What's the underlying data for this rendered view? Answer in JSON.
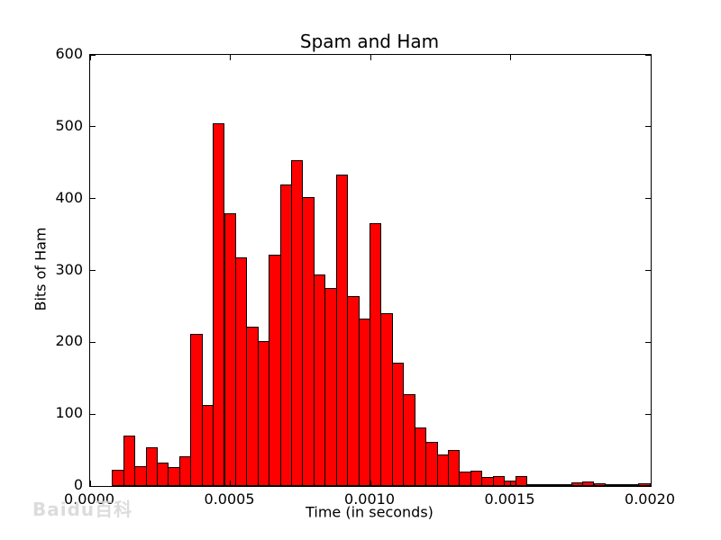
{
  "watermark": "Baidu百科",
  "colors": {
    "bar_fill": "#ff0000",
    "bar_edge": "#000000",
    "axis": "#000000",
    "text": "#000000",
    "background": "#ffffff",
    "watermark": "#d7d7d7"
  },
  "chart_data": {
    "type": "bar",
    "title": "Spam and Ham",
    "xlabel": "Time (in seconds)",
    "ylabel": "Bits of Ham",
    "xlim": [
      0.0,
      0.002
    ],
    "ylim": [
      0,
      600
    ],
    "grid": false,
    "legend": null,
    "x_tick_labels": [
      "0.0000",
      "0.0005",
      "0.0010",
      "0.0015",
      "0.0020"
    ],
    "x_tick_values": [
      0.0,
      0.0005,
      0.001,
      0.0015,
      0.002
    ],
    "y_tick_labels": [
      "0",
      "100",
      "200",
      "300",
      "400",
      "500",
      "600"
    ],
    "y_tick_values": [
      0,
      100,
      200,
      300,
      400,
      500,
      600
    ],
    "bin_start": 7.8e-05,
    "bin_width": 3.995e-05,
    "values": [
      22,
      70,
      27,
      54,
      32,
      26,
      41,
      212,
      113,
      505,
      380,
      318,
      222,
      202,
      322,
      420,
      454,
      402,
      295,
      275,
      434,
      264,
      233,
      366,
      241,
      172,
      128,
      81,
      62,
      44,
      50,
      20,
      21,
      13,
      14,
      8,
      14,
      2,
      2,
      3,
      2,
      5,
      6,
      4,
      2,
      1,
      1,
      4
    ]
  }
}
